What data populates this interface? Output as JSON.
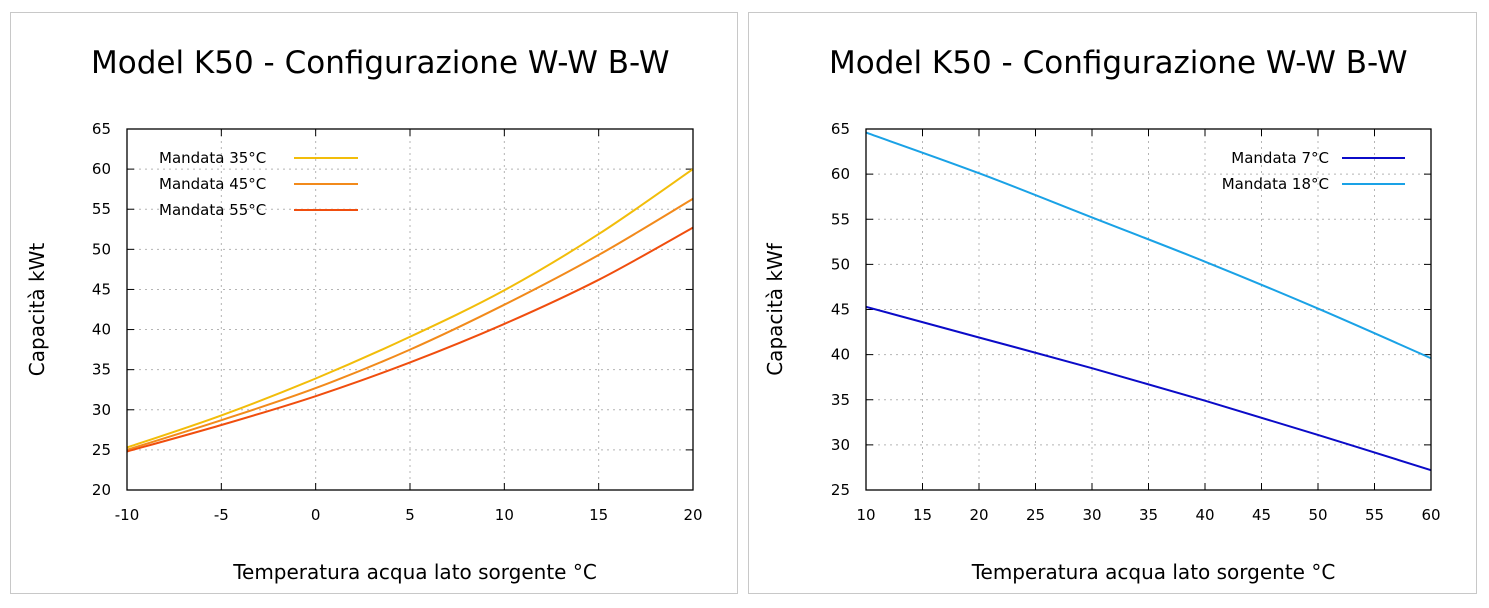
{
  "chart_data": [
    {
      "type": "line",
      "title": "Model K50 - Configurazione W-W B-W",
      "xlabel": "Temperatura acqua lato sorgente °C",
      "ylabel": "Capacità kWt",
      "xlim": [
        -10,
        20
      ],
      "ylim": [
        20,
        65
      ],
      "xticks": [
        -10,
        -5,
        0,
        5,
        10,
        15,
        20
      ],
      "yticks": [
        20,
        25,
        30,
        35,
        40,
        45,
        50,
        55,
        60,
        65
      ],
      "grid": true,
      "legend_position": "top-left",
      "x": [
        -10,
        -5,
        0,
        5,
        10,
        15,
        20
      ],
      "series": [
        {
          "name": "Mandata 35°C",
          "color": "#f2bd0a",
          "values": [
            25.3,
            29.3,
            33.9,
            39.1,
            44.9,
            51.9,
            60.0
          ]
        },
        {
          "name": "Mandata 45°C",
          "color": "#f28a1b",
          "values": [
            25.0,
            28.7,
            32.7,
            37.5,
            43.1,
            49.3,
            56.3
          ]
        },
        {
          "name": "Mandata 55°C",
          "color": "#f04e0e",
          "values": [
            24.8,
            28.1,
            31.7,
            35.9,
            40.7,
            46.2,
            52.7
          ]
        }
      ]
    },
    {
      "type": "line",
      "title": "Model K50 - Configurazione W-W B-W",
      "xlabel": "Temperatura acqua lato sorgente °C",
      "ylabel": "Capacità kWf",
      "xlim": [
        10,
        60
      ],
      "ylim": [
        25,
        65
      ],
      "xticks": [
        10,
        15,
        20,
        25,
        30,
        35,
        40,
        45,
        50,
        55,
        60
      ],
      "yticks": [
        25,
        30,
        35,
        40,
        45,
        50,
        55,
        60,
        65
      ],
      "grid": true,
      "legend_position": "top-right",
      "x": [
        10,
        20,
        30,
        40,
        50,
        60
      ],
      "series": [
        {
          "name": "Mandata 7°C",
          "color": "#0b0bc8",
          "values": [
            45.3,
            41.9,
            38.5,
            34.9,
            31.1,
            27.2
          ]
        },
        {
          "name": "Mandata 18°C",
          "color": "#1aa2e6",
          "values": [
            64.6,
            60.1,
            55.2,
            50.3,
            45.1,
            39.6
          ]
        }
      ]
    }
  ]
}
